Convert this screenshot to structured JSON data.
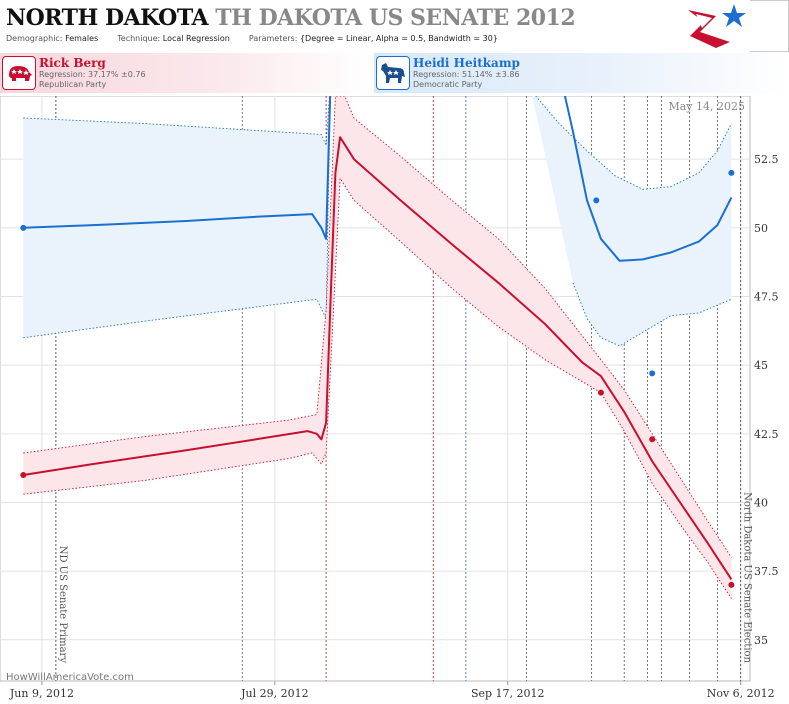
{
  "header": {
    "title_primary": "NORTH DAKOTA",
    "title_secondary": "TH DAKOTA US SENATE 2012",
    "demographic_label": "Demographic:",
    "demographic_value": "Females",
    "technique_label": "Technique:",
    "technique_value": "Local Regression",
    "parameters_label": "Parameters:",
    "parameters_value": "{Degree = Linear, Alpha = 0.5, Bandwidth = 30}"
  },
  "candidates": [
    {
      "name": "Rick Berg",
      "regression": "Regression: 37.17% ±0.76",
      "party": "Republican Party",
      "color": "#c8102e",
      "icon": "elephant-icon"
    },
    {
      "name": "Heidi Heitkamp",
      "regression": "Regression: 51.14% ±3.86",
      "party": "Democratic Party",
      "color": "#1a6fd0",
      "icon": "donkey-icon"
    }
  ],
  "watermark": "HowWillAmericaVote.com",
  "chart_data": {
    "type": "line",
    "date_label": "May 14, 2025",
    "x_ticks": [
      "Jun 9, 2012",
      "Jul 29, 2012",
      "Sep 17, 2012",
      "Nov 6, 2012"
    ],
    "y_ticks": [
      35,
      37.5,
      40,
      42.5,
      45,
      47.5,
      50,
      52.5
    ],
    "ylim": [
      33.5,
      54.8
    ],
    "xlim": [
      "2012-05-31",
      "2012-11-08"
    ],
    "events": [
      {
        "date": "2012-06-12",
        "label": "ND US Senate Primary"
      },
      {
        "date": "2012-11-06",
        "label": "North Dakota US Senate Election"
      }
    ],
    "vertical_lines": [
      {
        "date": "2012-07-22",
        "color": "#555"
      },
      {
        "date": "2012-08-09",
        "color": "#c8102e"
      },
      {
        "date": "2012-09-01",
        "color": "#c8102e"
      },
      {
        "date": "2012-09-08",
        "color": "#1a6fd0"
      },
      {
        "date": "2012-09-21",
        "color": "#555"
      },
      {
        "date": "2012-10-05",
        "color": "#555"
      },
      {
        "date": "2012-10-12",
        "color": "#555"
      },
      {
        "date": "2012-10-17",
        "color": "#555"
      },
      {
        "date": "2012-10-20",
        "color": "#555"
      },
      {
        "date": "2012-10-26",
        "color": "#555"
      },
      {
        "date": "2012-11-01",
        "color": "#555"
      }
    ],
    "series": [
      {
        "name": "Heidi Heitkamp",
        "color": "#1a6fd0",
        "band_color": "#eaf3fc",
        "line": [
          [
            "2012-06-05",
            50.0
          ],
          [
            "2012-06-20",
            50.1
          ],
          [
            "2012-07-10",
            50.25
          ],
          [
            "2012-07-25",
            50.4
          ],
          [
            "2012-08-06",
            50.5
          ],
          [
            "2012-08-08",
            50.0
          ],
          [
            "2012-08-09",
            49.6
          ],
          [
            "2012-08-10",
            55.5
          ]
        ],
        "upper": [
          [
            "2012-06-05",
            54.0
          ],
          [
            "2012-07-01",
            53.8
          ],
          [
            "2012-08-08",
            53.4
          ],
          [
            "2012-08-09",
            53.0
          ],
          [
            "2012-08-10",
            55.5
          ]
        ],
        "lower": [
          [
            "2012-06-05",
            46.0
          ],
          [
            "2012-07-01",
            46.6
          ],
          [
            "2012-08-07",
            47.4
          ],
          [
            "2012-08-09",
            46.7
          ],
          [
            "2012-08-10",
            55.5
          ]
        ],
        "line2": [
          [
            "2012-09-29",
            55.0
          ],
          [
            "2012-10-01",
            53.5
          ],
          [
            "2012-10-04",
            51.0
          ],
          [
            "2012-10-07",
            49.6
          ],
          [
            "2012-10-11",
            48.8
          ],
          [
            "2012-10-16",
            48.85
          ],
          [
            "2012-10-22",
            49.1
          ],
          [
            "2012-10-28",
            49.5
          ],
          [
            "2012-11-01",
            50.1
          ],
          [
            "2012-11-04",
            51.1
          ]
        ],
        "upper2": [
          [
            "2012-09-22",
            55.0
          ],
          [
            "2012-09-28",
            53.8
          ],
          [
            "2012-10-04",
            52.8
          ],
          [
            "2012-10-10",
            51.9
          ],
          [
            "2012-10-16",
            51.4
          ],
          [
            "2012-10-22",
            51.5
          ],
          [
            "2012-10-28",
            52.0
          ],
          [
            "2012-11-01",
            52.8
          ],
          [
            "2012-11-04",
            53.8
          ]
        ],
        "lower2": [
          [
            "2012-10-01",
            48.0
          ],
          [
            "2012-10-04",
            46.7
          ],
          [
            "2012-10-07",
            46.0
          ],
          [
            "2012-10-11",
            45.7
          ],
          [
            "2012-10-16",
            46.2
          ],
          [
            "2012-10-22",
            46.8
          ],
          [
            "2012-10-28",
            46.9
          ],
          [
            "2012-11-04",
            47.4
          ]
        ],
        "points": [
          [
            "2012-06-05",
            50.0
          ],
          [
            "2012-10-06",
            51.0
          ],
          [
            "2012-10-18",
            44.7
          ],
          [
            "2012-11-04",
            52.0
          ]
        ]
      },
      {
        "name": "Rick Berg",
        "color": "#c8102e",
        "band_color": "#fce6ea",
        "line": [
          [
            "2012-06-05",
            41.0
          ],
          [
            "2012-06-20",
            41.4
          ],
          [
            "2012-07-10",
            41.9
          ],
          [
            "2012-07-25",
            42.3
          ],
          [
            "2012-08-05",
            42.6
          ],
          [
            "2012-08-07",
            42.5
          ],
          [
            "2012-08-08",
            42.3
          ],
          [
            "2012-08-09",
            42.9
          ],
          [
            "2012-08-10",
            47.5
          ],
          [
            "2012-08-11",
            52.0
          ],
          [
            "2012-08-12",
            53.3
          ],
          [
            "2012-08-15",
            52.5
          ],
          [
            "2012-08-25",
            51.0
          ],
          [
            "2012-09-05",
            49.4
          ],
          [
            "2012-09-15",
            48.0
          ],
          [
            "2012-09-25",
            46.5
          ],
          [
            "2012-10-03",
            45.1
          ],
          [
            "2012-10-07",
            44.6
          ],
          [
            "2012-10-12",
            43.3
          ],
          [
            "2012-10-18",
            41.5
          ],
          [
            "2012-10-24",
            40.0
          ],
          [
            "2012-10-30",
            38.5
          ],
          [
            "2012-11-04",
            37.2
          ]
        ],
        "upper": [
          [
            "2012-06-05",
            41.8
          ],
          [
            "2012-07-01",
            42.4
          ],
          [
            "2012-08-01",
            43.0
          ],
          [
            "2012-08-07",
            43.2
          ],
          [
            "2012-08-09",
            47.0
          ],
          [
            "2012-08-11",
            54.8
          ],
          [
            "2012-08-13",
            54.8
          ],
          [
            "2012-08-15",
            54.0
          ],
          [
            "2012-08-25",
            52.6
          ],
          [
            "2012-09-05",
            51.0
          ],
          [
            "2012-09-15",
            49.6
          ],
          [
            "2012-09-25",
            47.8
          ],
          [
            "2012-10-07",
            45.2
          ],
          [
            "2012-10-12",
            44.1
          ],
          [
            "2012-10-18",
            42.5
          ],
          [
            "2012-10-24",
            40.9
          ],
          [
            "2012-10-30",
            39.3
          ],
          [
            "2012-11-04",
            38.0
          ]
        ],
        "lower": [
          [
            "2012-06-05",
            40.3
          ],
          [
            "2012-07-01",
            40.8
          ],
          [
            "2012-08-01",
            41.6
          ],
          [
            "2012-08-06",
            41.8
          ],
          [
            "2012-08-08",
            41.4
          ],
          [
            "2012-08-09",
            41.8
          ],
          [
            "2012-08-10",
            45.0
          ],
          [
            "2012-08-12",
            51.8
          ],
          [
            "2012-08-15",
            51.0
          ],
          [
            "2012-08-25",
            49.5
          ],
          [
            "2012-09-05",
            47.8
          ],
          [
            "2012-09-15",
            46.4
          ],
          [
            "2012-09-25",
            45.2
          ],
          [
            "2012-10-07",
            44.0
          ],
          [
            "2012-10-12",
            42.6
          ],
          [
            "2012-10-18",
            40.7
          ],
          [
            "2012-10-24",
            39.2
          ],
          [
            "2012-10-30",
            37.8
          ],
          [
            "2012-11-04",
            36.5
          ]
        ],
        "points": [
          [
            "2012-06-05",
            41.0
          ],
          [
            "2012-10-07",
            44.0
          ],
          [
            "2012-10-18",
            42.3
          ],
          [
            "2012-11-04",
            37.0
          ]
        ]
      }
    ]
  }
}
